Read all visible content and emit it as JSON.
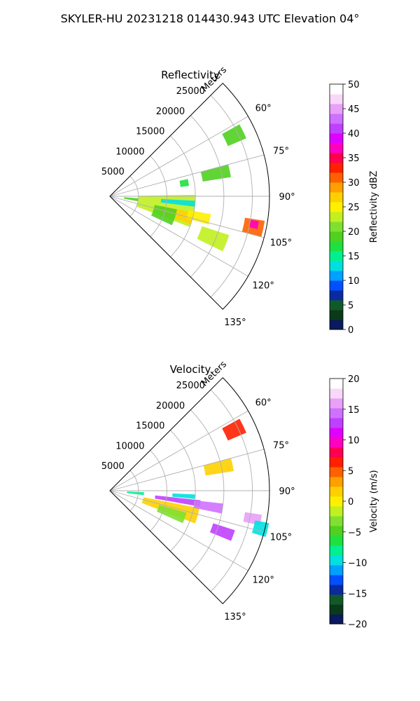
{
  "title": "SKYLER-HU  20231218  014430.943 UTC Elevation 04°",
  "colors": {
    "reflectivity_stops": [
      "#0a1a5c",
      "#0a3a1a",
      "#105a2a",
      "#0a2aa0",
      "#0050ff",
      "#00a0ff",
      "#00e0e0",
      "#00f090",
      "#20e040",
      "#50d020",
      "#80e030",
      "#c0f020",
      "#fff000",
      "#ffd000",
      "#ffa000",
      "#ff6000",
      "#ff2000",
      "#ff0050",
      "#ff00c0",
      "#e000ff",
      "#c040ff",
      "#d070ff",
      "#e8a0f8",
      "#f8d8f8",
      "#ffffff"
    ],
    "velocity_stops": [
      "#0a1a5c",
      "#0a3a1a",
      "#105a2a",
      "#0a2aa0",
      "#0050ff",
      "#00a0ff",
      "#00e0e0",
      "#00f090",
      "#20e040",
      "#50d020",
      "#80e030",
      "#c0f020",
      "#fff000",
      "#ffd000",
      "#ffa000",
      "#ff6000",
      "#ff2000",
      "#ff0050",
      "#ff00c0",
      "#e000ff",
      "#c040ff",
      "#d070ff",
      "#e8a0f8",
      "#f8d8f8",
      "#ffffff"
    ]
  },
  "chart_data": [
    {
      "type": "heatmap",
      "title": "Reflectivity",
      "radial_label": "Meters",
      "radial_ticks": [
        5000,
        10000,
        15000,
        20000,
        25000
      ],
      "radial_tick_labels": [
        "5000",
        "10000",
        "15000",
        "20000",
        "25000"
      ],
      "angle_ticks": [
        60,
        75,
        90,
        105,
        120,
        135
      ],
      "angle_tick_labels": [
        "60°",
        "75°",
        "90°",
        "105°",
        "120°",
        "135°"
      ],
      "theta_range_deg": [
        45,
        135
      ],
      "r_max": 28000,
      "grid": true,
      "colorbar": {
        "label": "Reflectivity dBZ",
        "vmin": 0,
        "vmax": 50,
        "ticks": [
          0,
          5,
          10,
          15,
          20,
          25,
          30,
          35,
          40,
          45,
          50
        ],
        "tick_labels": [
          "0",
          "5",
          "10",
          "15",
          "20",
          "25",
          "30",
          "35",
          "40",
          "45",
          "50"
        ]
      },
      "cells": [
        {
          "theta": 100,
          "r": 5000,
          "dtheta": 22,
          "dr": 10000,
          "value": 22
        },
        {
          "theta": 105,
          "r": 9000,
          "dtheta": 8,
          "dr": 6000,
          "value": 26
        },
        {
          "theta": 103,
          "r": 14000,
          "dtheta": 6,
          "dr": 4000,
          "value": 24
        },
        {
          "theta": 95,
          "r": 9000,
          "dtheta": 4,
          "dr": 6000,
          "value": 12
        },
        {
          "theta": 112,
          "r": 17000,
          "dtheta": 8,
          "dr": 5000,
          "value": 22
        },
        {
          "theta": 102,
          "r": 24000,
          "dtheta": 6,
          "dr": 3500,
          "value": 30
        },
        {
          "theta": 101,
          "r": 25000,
          "dtheta": 3,
          "dr": 1500,
          "value": 36
        },
        {
          "theta": 78,
          "r": 16500,
          "dtheta": 6,
          "dr": 5000,
          "value": 18
        },
        {
          "theta": 64,
          "r": 22500,
          "dtheta": 6,
          "dr": 3500,
          "value": 18
        },
        {
          "theta": 80,
          "r": 12500,
          "dtheta": 5,
          "dr": 1500,
          "value": 17
        },
        {
          "theta": 108,
          "r": 8000,
          "dtheta": 14,
          "dr": 4000,
          "value": 18
        },
        {
          "theta": 97,
          "r": 2500,
          "dtheta": 6,
          "dr": 2500,
          "value": 18
        }
      ]
    },
    {
      "type": "heatmap",
      "title": "Velocity",
      "radial_label": "Meters",
      "radial_ticks": [
        5000,
        10000,
        15000,
        20000,
        25000
      ],
      "radial_tick_labels": [
        "5000",
        "10000",
        "15000",
        "20000",
        "25000"
      ],
      "angle_ticks": [
        60,
        75,
        90,
        105,
        120,
        135
      ],
      "angle_tick_labels": [
        "60°",
        "75°",
        "90°",
        "105°",
        "120°",
        "135°"
      ],
      "theta_range_deg": [
        45,
        135
      ],
      "r_max": 28000,
      "grid": true,
      "colorbar": {
        "label": "Velocity (m/s)",
        "vmin": -20,
        "vmax": 20,
        "ticks": [
          -20,
          -15,
          -10,
          -5,
          0,
          5,
          10,
          15,
          20
        ],
        "tick_labels": [
          "−20",
          "−15",
          "−10",
          "−5",
          "0",
          "5",
          "10",
          "15",
          "20"
        ]
      },
      "cells": [
        {
          "theta": 106,
          "r": 6000,
          "dtheta": 10,
          "dr": 10000,
          "value": 2
        },
        {
          "theta": 98,
          "r": 8000,
          "dtheta": 4,
          "dr": 8000,
          "value": 13
        },
        {
          "theta": 110,
          "r": 9000,
          "dtheta": 8,
          "dr": 5000,
          "value": -3
        },
        {
          "theta": 99,
          "r": 15000,
          "dtheta": 5,
          "dr": 5000,
          "value": 15
        },
        {
          "theta": 110,
          "r": 19000,
          "dtheta": 5,
          "dr": 4000,
          "value": 12
        },
        {
          "theta": 101,
          "r": 24000,
          "dtheta": 4,
          "dr": 3000,
          "value": 16
        },
        {
          "theta": 104,
          "r": 26000,
          "dtheta": 5,
          "dr": 2500,
          "value": -10
        },
        {
          "theta": 78,
          "r": 17000,
          "dtheta": 6,
          "dr": 5000,
          "value": 2
        },
        {
          "theta": 64,
          "r": 22500,
          "dtheta": 6,
          "dr": 3500,
          "value": 7
        },
        {
          "theta": 95,
          "r": 3000,
          "dtheta": 5,
          "dr": 3000,
          "value": -8
        },
        {
          "theta": 94,
          "r": 11000,
          "dtheta": 3,
          "dr": 4000,
          "value": -10
        }
      ]
    }
  ]
}
